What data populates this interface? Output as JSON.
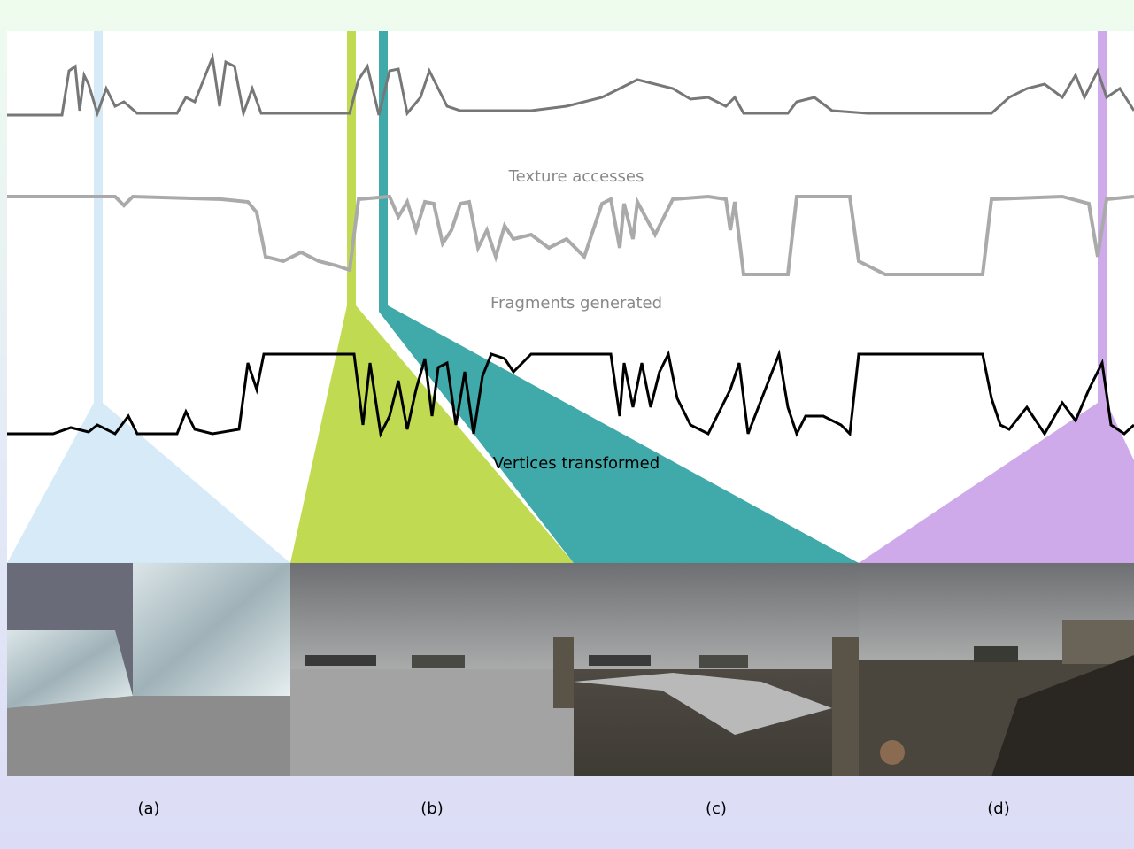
{
  "plots": [
    {
      "label": "Texture accesses"
    },
    {
      "label": "Fragments generated"
    },
    {
      "label": "Vertices transformed"
    }
  ],
  "panels": [
    {
      "label": "(a)"
    },
    {
      "label": "(b)"
    },
    {
      "label": "(c)"
    },
    {
      "label": "(d)"
    }
  ]
}
